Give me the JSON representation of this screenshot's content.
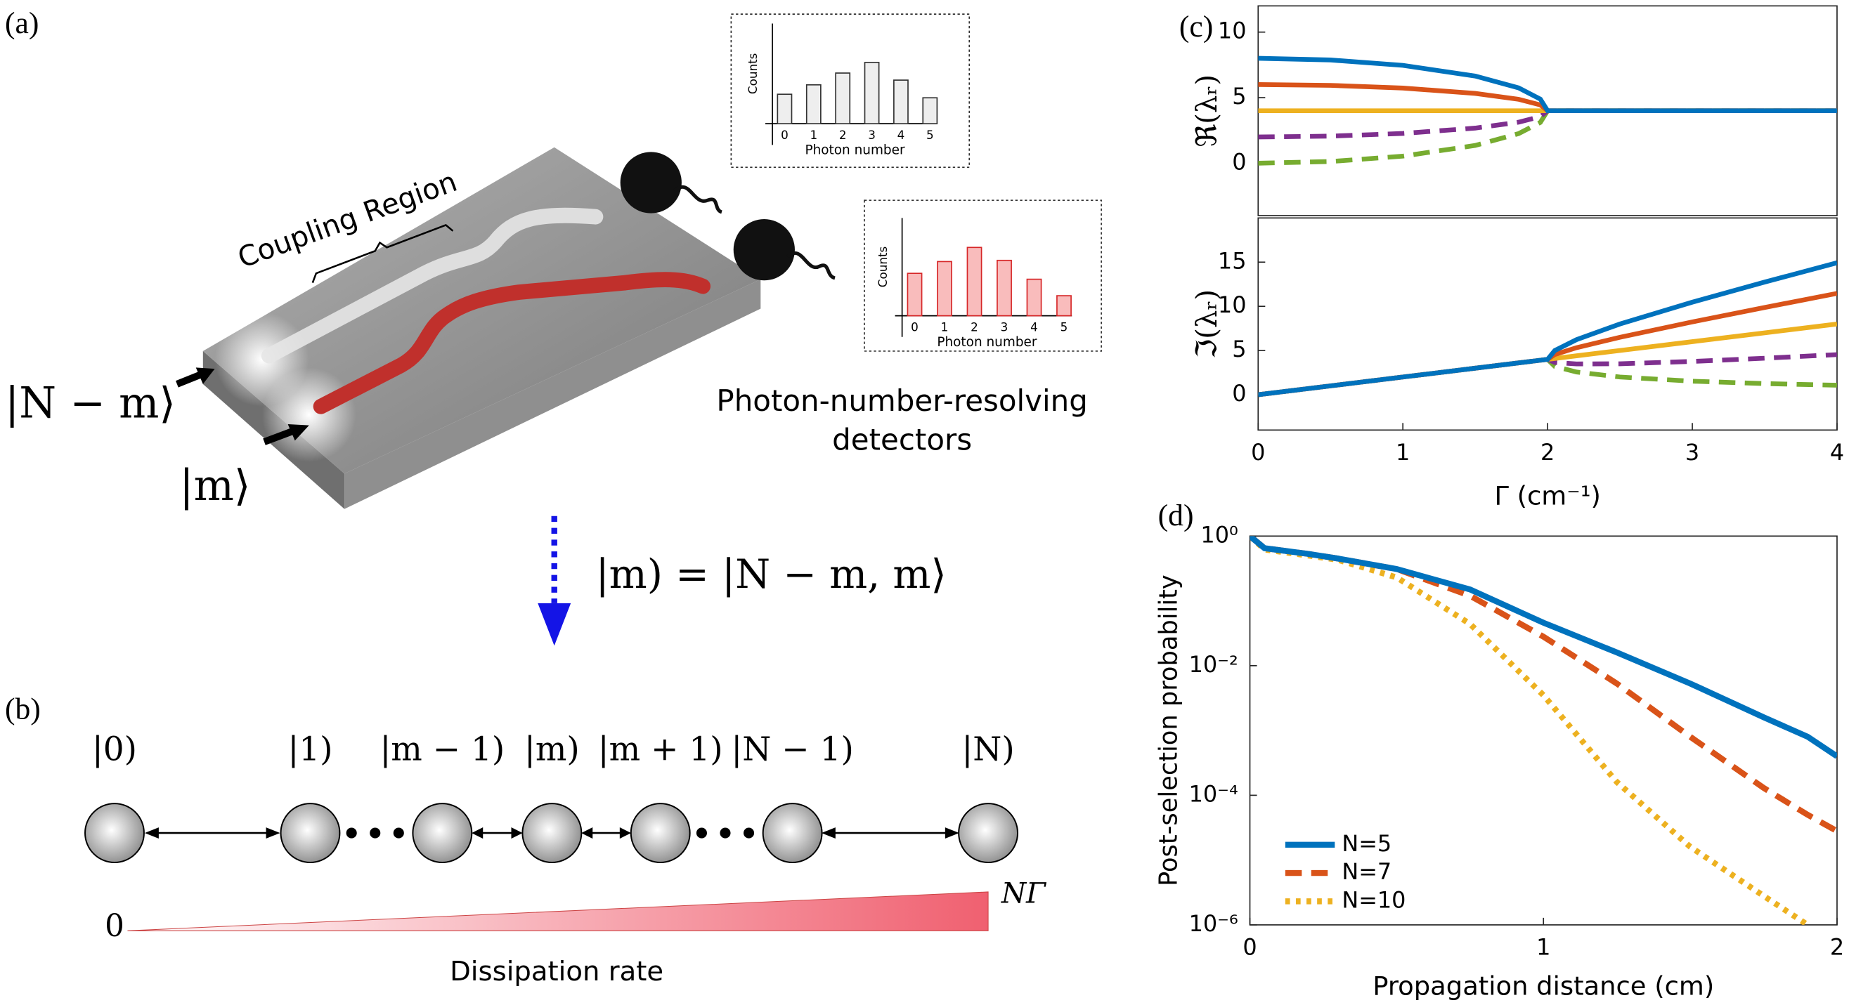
{
  "panel_a": {
    "label": "(a)",
    "coupling": "Coupling Region",
    "input_top": "|N − m⟩",
    "input_bottom": "|m⟩",
    "detectors": [
      "Photon-number-resolving",
      "detectors"
    ],
    "mapping": "|m) = |N − m, m⟩"
  },
  "panel_b": {
    "label": "(b)",
    "states": [
      "|0)",
      "|1)",
      "|m − 1)",
      "|m)",
      "|m + 1)",
      "|N − 1)",
      "|N)"
    ],
    "rate_start": "0",
    "rate_end": "NΓ",
    "rate_label": "Dissipation rate"
  },
  "chart_data": [
    {
      "type": "bar",
      "ylabel": "Counts",
      "xlabel": "Photon number",
      "categories": [
        "0",
        "1",
        "2",
        "3",
        "4",
        "5"
      ],
      "values": [
        25,
        33,
        43,
        52,
        37,
        22
      ],
      "ylim": [
        0,
        85
      ],
      "color": "#eeeeee",
      "edgecolor": "#333333"
    },
    {
      "type": "bar",
      "ylabel": "Counts",
      "xlabel": "Photon number",
      "categories": [
        "0",
        "1",
        "2",
        "3",
        "4",
        "5"
      ],
      "values": [
        36,
        46,
        58,
        47,
        31,
        17
      ],
      "ylim": [
        0,
        83
      ],
      "color": "#f9bcbc",
      "edgecolor": "#d62728"
    },
    {
      "type": "line",
      "panel": "(c)",
      "ylabel": "ℜ(λᵣ)",
      "xlim": [
        0,
        4
      ],
      "ylim": [
        -4,
        12
      ],
      "yticks": [
        0,
        5,
        10
      ],
      "x": [
        0,
        0.5,
        1,
        1.5,
        1.8,
        1.95,
        2,
        2.05,
        2.2,
        2.5,
        3,
        3.5,
        4
      ],
      "series": [
        {
          "color": "#0072bd",
          "dash": "solid",
          "values": [
            8,
            7.873,
            7.464,
            6.646,
            5.744,
            4.888,
            4,
            4,
            4,
            4,
            4,
            4,
            4
          ]
        },
        {
          "color": "#d95319",
          "dash": "solid",
          "values": [
            6,
            5.936,
            5.732,
            5.323,
            4.872,
            4.444,
            4,
            4,
            4,
            4,
            4,
            4,
            4
          ]
        },
        {
          "color": "#edb120",
          "dash": "solid",
          "values": [
            4,
            4,
            4,
            4,
            4,
            4,
            4,
            4,
            4,
            4,
            4,
            4,
            4
          ]
        },
        {
          "color": "#7e2f8e",
          "dash": "dashed",
          "values": [
            2,
            2.064,
            2.268,
            2.677,
            3.128,
            3.556,
            4,
            4,
            4,
            4,
            4,
            4,
            4
          ]
        },
        {
          "color": "#77ac30",
          "dash": "dashed",
          "values": [
            0,
            0.127,
            0.536,
            1.354,
            2.256,
            3.112,
            4,
            4,
            4,
            4,
            4,
            4,
            4
          ]
        }
      ]
    },
    {
      "type": "line",
      "ylabel": "ℑ(λᵣ)",
      "xlabel": "Γ (cm⁻¹)",
      "xlim": [
        0,
        4
      ],
      "xticks": [
        0,
        1,
        2,
        3,
        4
      ],
      "ylim": [
        -4,
        20
      ],
      "yticks": [
        0,
        5,
        10,
        15
      ],
      "x": [
        0,
        0.5,
        1,
        1.5,
        1.8,
        1.95,
        2,
        2.05,
        2.2,
        2.5,
        3,
        3.5,
        4
      ],
      "series": [
        {
          "color": "#0072bd",
          "dash": "solid",
          "values": [
            0,
            1,
            2,
            3,
            3.6,
            3.9,
            4,
            5.0,
            6.234,
            8,
            10.472,
            12.744,
            14.928
          ]
        },
        {
          "color": "#d95319",
          "dash": "solid",
          "values": [
            0,
            1,
            2,
            3,
            3.6,
            3.9,
            4,
            4.55,
            5.317,
            6.5,
            8.236,
            9.872,
            11.464
          ]
        },
        {
          "color": "#edb120",
          "dash": "solid",
          "values": [
            0,
            1,
            2,
            3,
            3.6,
            3.9,
            4,
            4.1,
            4.4,
            5,
            6,
            7,
            8
          ]
        },
        {
          "color": "#7e2f8e",
          "dash": "dashed",
          "values": [
            0,
            1,
            2,
            3,
            3.6,
            3.9,
            4,
            3.65,
            3.483,
            3.5,
            3.764,
            4.128,
            4.536
          ]
        },
        {
          "color": "#77ac30",
          "dash": "dashed",
          "values": [
            0,
            1,
            2,
            3,
            3.6,
            3.9,
            4,
            3.2,
            2.566,
            2,
            1.528,
            1.256,
            1.072
          ]
        }
      ]
    },
    {
      "type": "line",
      "panel": "(d)",
      "ylabel": "Post-selection probability",
      "xlabel": "Propagation distance (cm)",
      "yscale": "log",
      "legend": "lower left",
      "xlim": [
        0,
        2
      ],
      "xticks": [
        0,
        1,
        2
      ],
      "ylim": [
        1e-06,
        1
      ],
      "yticks": [
        {
          "value": 1,
          "label": "10⁰"
        },
        {
          "value": 0.01,
          "label": "10⁻²"
        },
        {
          "value": 0.0001,
          "label": "10⁻⁴"
        },
        {
          "value": 1e-06,
          "label": "10⁻⁶"
        }
      ],
      "x": [
        0,
        0.05,
        0.2,
        0.3,
        0.5,
        0.75,
        1,
        1.25,
        1.5,
        1.75,
        1.9,
        2
      ],
      "series": [
        {
          "name": "N=5",
          "color": "#0072bd",
          "dash": "solid",
          "values": [
            1,
            0.65,
            0.53,
            0.45,
            0.31,
            0.15,
            0.046,
            0.016,
            0.0053,
            0.0016,
            0.0008,
            0.0004
          ]
        },
        {
          "name": "N=7",
          "color": "#d95319",
          "dash": "dashed",
          "values": [
            1,
            0.65,
            0.53,
            0.45,
            0.31,
            0.12,
            0.028,
            0.0053,
            0.0008,
            0.00013,
            5e-05,
            2.8e-05
          ]
        },
        {
          "name": "N=10",
          "color": "#edb120",
          "dash": "dotted",
          "values": [
            1,
            0.62,
            0.5,
            0.43,
            0.23,
            0.044,
            0.0035,
            0.00016,
            1.6e-05,
            2.8e-06,
            1e-06,
            null
          ]
        }
      ]
    }
  ]
}
